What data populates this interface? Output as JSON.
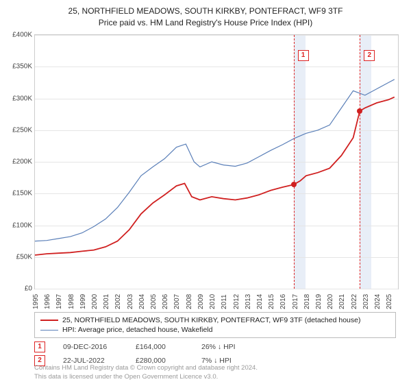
{
  "title_line1": "25, NORTHFIELD MEADOWS, SOUTH KIRKBY, PONTEFRACT, WF9 3TF",
  "title_line2": "Price paid vs. HM Land Registry's House Price Index (HPI)",
  "chart": {
    "type": "line",
    "x_range": [
      1995,
      2025.8
    ],
    "y_range": [
      0,
      400000
    ],
    "y_ticks": [
      0,
      50000,
      100000,
      150000,
      200000,
      250000,
      300000,
      350000,
      400000
    ],
    "y_tick_labels": [
      "£0",
      "£50K",
      "£100K",
      "£150K",
      "£200K",
      "£250K",
      "£300K",
      "£350K",
      "£400K"
    ],
    "x_ticks": [
      1995,
      1996,
      1997,
      1998,
      1999,
      2000,
      2001,
      2002,
      2003,
      2004,
      2005,
      2006,
      2007,
      2008,
      2009,
      2010,
      2011,
      2012,
      2013,
      2014,
      2015,
      2016,
      2017,
      2018,
      2019,
      2020,
      2021,
      2022,
      2023,
      2024,
      2025
    ],
    "grid_color": "#e5e5e5",
    "background_color": "#ffffff",
    "shade_color": "#e8eef7",
    "marker_line_color": "#d22",
    "series": {
      "price_paid": {
        "color": "#d02020",
        "width": 1.8,
        "points": [
          [
            1995,
            53000
          ],
          [
            1996,
            55000
          ],
          [
            1997,
            56000
          ],
          [
            1998,
            57000
          ],
          [
            1999,
            59000
          ],
          [
            2000,
            61000
          ],
          [
            2001,
            66000
          ],
          [
            2002,
            75000
          ],
          [
            2003,
            93000
          ],
          [
            2004,
            118000
          ],
          [
            2005,
            135000
          ],
          [
            2006,
            148000
          ],
          [
            2007,
            162000
          ],
          [
            2007.7,
            166000
          ],
          [
            2008.3,
            145000
          ],
          [
            2009,
            140000
          ],
          [
            2010,
            145000
          ],
          [
            2011,
            142000
          ],
          [
            2012,
            140000
          ],
          [
            2013,
            143000
          ],
          [
            2014,
            148000
          ],
          [
            2015,
            155000
          ],
          [
            2016,
            160000
          ],
          [
            2016.94,
            164000
          ],
          [
            2017.5,
            170000
          ],
          [
            2018,
            178000
          ],
          [
            2019,
            183000
          ],
          [
            2020,
            190000
          ],
          [
            2021,
            210000
          ],
          [
            2022,
            238000
          ],
          [
            2022.56,
            280000
          ],
          [
            2023,
            285000
          ],
          [
            2024,
            293000
          ],
          [
            2025,
            298000
          ],
          [
            2025.5,
            302000
          ]
        ]
      },
      "hpi": {
        "color": "#5a7fb8",
        "width": 1.2,
        "points": [
          [
            1995,
            75000
          ],
          [
            1996,
            76000
          ],
          [
            1997,
            79000
          ],
          [
            1998,
            82000
          ],
          [
            1999,
            88000
          ],
          [
            2000,
            98000
          ],
          [
            2001,
            110000
          ],
          [
            2002,
            128000
          ],
          [
            2003,
            152000
          ],
          [
            2004,
            178000
          ],
          [
            2005,
            192000
          ],
          [
            2006,
            205000
          ],
          [
            2007,
            223000
          ],
          [
            2007.8,
            228000
          ],
          [
            2008.5,
            200000
          ],
          [
            2009,
            192000
          ],
          [
            2010,
            200000
          ],
          [
            2011,
            195000
          ],
          [
            2012,
            193000
          ],
          [
            2013,
            198000
          ],
          [
            2014,
            208000
          ],
          [
            2015,
            218000
          ],
          [
            2016,
            227000
          ],
          [
            2017,
            237000
          ],
          [
            2018,
            245000
          ],
          [
            2019,
            250000
          ],
          [
            2020,
            258000
          ],
          [
            2021,
            285000
          ],
          [
            2022,
            312000
          ],
          [
            2023,
            305000
          ],
          [
            2024,
            315000
          ],
          [
            2025,
            325000
          ],
          [
            2025.5,
            330000
          ]
        ]
      }
    },
    "sale_markers": [
      {
        "label": "1",
        "x": 2016.94,
        "y": 164000,
        "shade_end": 2017.94
      },
      {
        "label": "2",
        "x": 2022.56,
        "y": 280000,
        "shade_end": 2023.56
      }
    ],
    "dot_color": "#d02020"
  },
  "legend": {
    "row1": {
      "color": "#d02020",
      "width": 2,
      "label": "25, NORTHFIELD MEADOWS, SOUTH KIRKBY, PONTEFRACT, WF9 3TF (detached house)"
    },
    "row2": {
      "color": "#5a7fb8",
      "width": 1,
      "label": "HPI: Average price, detached house, Wakefield"
    }
  },
  "data_rows": [
    {
      "marker": "1",
      "date": "09-DEC-2016",
      "price": "£164,000",
      "hpi": "26% ↓ HPI"
    },
    {
      "marker": "2",
      "date": "22-JUL-2022",
      "price": "£280,000",
      "hpi": "7% ↓ HPI"
    }
  ],
  "footer_line1": "Contains HM Land Registry data © Crown copyright and database right 2024.",
  "footer_line2": "This data is licensed under the Open Government Licence v3.0."
}
